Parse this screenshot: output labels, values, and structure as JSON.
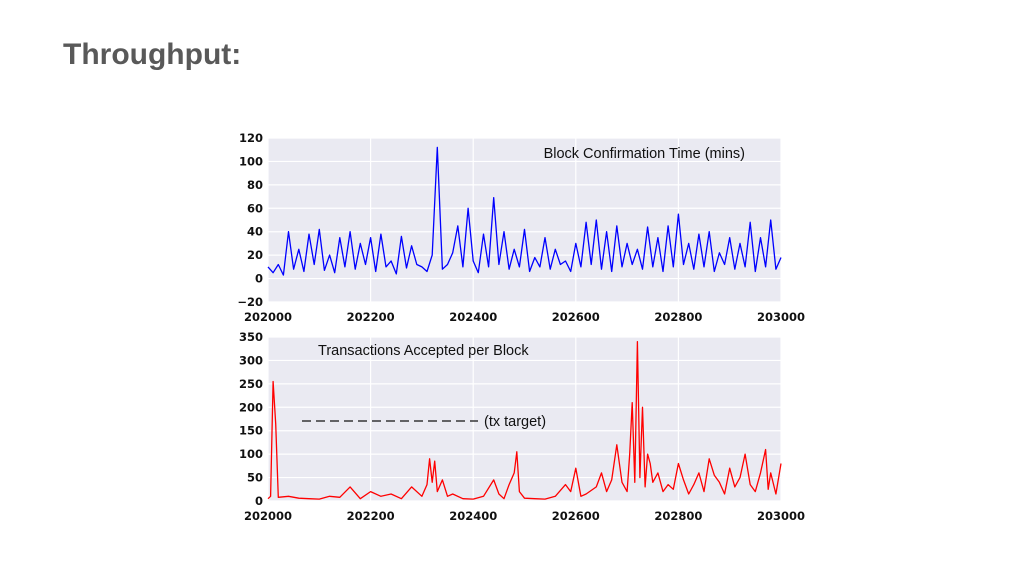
{
  "slide": {
    "title": "Throughput:"
  },
  "chart_data": [
    {
      "type": "line",
      "annotation": "Block Confirmation Time (mins)",
      "xlim": [
        202000,
        203000
      ],
      "ylim": [
        -20,
        120
      ],
      "xticks": [
        202000,
        202200,
        202400,
        202600,
        202800,
        203000
      ],
      "yticks": [
        -20,
        0,
        20,
        40,
        60,
        80,
        100,
        120
      ],
      "grid": true,
      "series": [
        {
          "color": "#0000ff",
          "x": [
            202000,
            202010,
            202020,
            202030,
            202040,
            202050,
            202060,
            202070,
            202080,
            202090,
            202100,
            202110,
            202120,
            202130,
            202140,
            202150,
            202160,
            202170,
            202180,
            202190,
            202200,
            202210,
            202220,
            202230,
            202240,
            202250,
            202260,
            202270,
            202280,
            202290,
            202300,
            202310,
            202320,
            202330,
            202340,
            202350,
            202360,
            202370,
            202380,
            202390,
            202400,
            202410,
            202420,
            202430,
            202440,
            202450,
            202460,
            202470,
            202480,
            202490,
            202500,
            202510,
            202520,
            202530,
            202540,
            202550,
            202560,
            202570,
            202580,
            202590,
            202600,
            202610,
            202620,
            202630,
            202640,
            202650,
            202660,
            202670,
            202680,
            202690,
            202700,
            202710,
            202720,
            202730,
            202740,
            202750,
            202760,
            202770,
            202780,
            202790,
            202800,
            202810,
            202820,
            202830,
            202840,
            202850,
            202860,
            202870,
            202880,
            202890,
            202900,
            202910,
            202920,
            202930,
            202940,
            202950,
            202960,
            202970,
            202980,
            202990,
            203000
          ],
          "y": [
            10,
            5,
            12,
            3,
            40,
            8,
            25,
            6,
            38,
            12,
            42,
            7,
            20,
            5,
            35,
            10,
            40,
            8,
            30,
            12,
            35,
            6,
            38,
            10,
            15,
            4,
            36,
            9,
            28,
            12,
            10,
            6,
            20,
            112,
            8,
            12,
            22,
            45,
            10,
            60,
            15,
            5,
            38,
            10,
            69,
            12,
            40,
            8,
            25,
            10,
            42,
            6,
            18,
            10,
            35,
            8,
            25,
            12,
            15,
            6,
            30,
            10,
            48,
            12,
            50,
            8,
            40,
            6,
            45,
            10,
            30,
            12,
            25,
            8,
            44,
            10,
            35,
            6,
            45,
            10,
            55,
            12,
            30,
            8,
            38,
            10,
            40,
            6,
            22,
            12,
            35,
            8,
            30,
            10,
            48,
            6,
            35,
            10,
            50,
            8,
            18
          ]
        }
      ]
    },
    {
      "type": "line",
      "annotation": "Transactions Accepted per Block",
      "reference_label": "(tx target)",
      "xlim": [
        202000,
        203000
      ],
      "ylim": [
        0,
        350
      ],
      "xticks": [
        202000,
        202200,
        202400,
        202600,
        202800,
        203000
      ],
      "yticks": [
        0,
        50,
        100,
        150,
        200,
        250,
        300,
        350
      ],
      "grid": true,
      "series": [
        {
          "color": "#ff0000",
          "x": [
            202000,
            202005,
            202010,
            202015,
            202020,
            202040,
            202060,
            202080,
            202100,
            202120,
            202140,
            202160,
            202180,
            202200,
            202220,
            202240,
            202260,
            202280,
            202300,
            202310,
            202315,
            202320,
            202325,
            202330,
            202340,
            202350,
            202360,
            202380,
            202400,
            202420,
            202440,
            202450,
            202460,
            202470,
            202480,
            202485,
            202490,
            202500,
            202520,
            202540,
            202560,
            202580,
            202590,
            202600,
            202610,
            202620,
            202640,
            202650,
            202660,
            202670,
            202680,
            202690,
            202700,
            202705,
            202710,
            202715,
            202720,
            202725,
            202730,
            202735,
            202740,
            202745,
            202750,
            202760,
            202770,
            202780,
            202790,
            202800,
            202810,
            202820,
            202830,
            202840,
            202850,
            202860,
            202870,
            202880,
            202890,
            202900,
            202910,
            202920,
            202930,
            202940,
            202950,
            202960,
            202970,
            202975,
            202980,
            202990,
            203000
          ],
          "y": [
            5,
            10,
            255,
            165,
            8,
            10,
            6,
            5,
            4,
            10,
            8,
            30,
            5,
            20,
            10,
            15,
            5,
            30,
            10,
            35,
            90,
            40,
            85,
            20,
            45,
            10,
            15,
            5,
            4,
            10,
            45,
            15,
            5,
            35,
            60,
            105,
            20,
            6,
            5,
            4,
            10,
            35,
            20,
            70,
            10,
            15,
            30,
            60,
            20,
            45,
            120,
            40,
            20,
            100,
            210,
            40,
            340,
            50,
            200,
            30,
            100,
            80,
            40,
            60,
            20,
            35,
            25,
            80,
            45,
            15,
            35,
            60,
            20,
            90,
            55,
            40,
            15,
            70,
            30,
            50,
            100,
            35,
            20,
            60,
            110,
            25,
            60,
            15,
            80
          ]
        }
      ]
    }
  ]
}
